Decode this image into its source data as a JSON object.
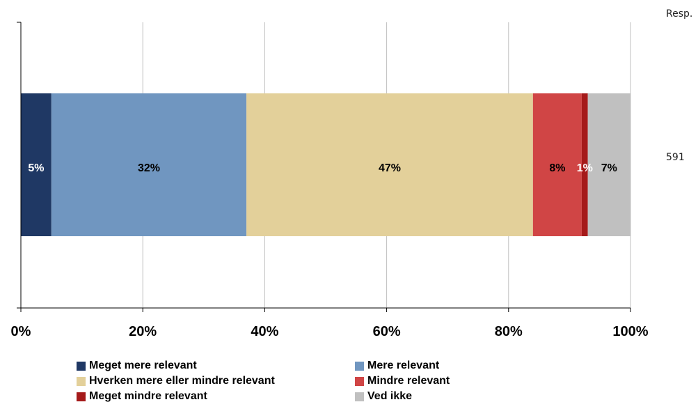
{
  "respondents": {
    "header": "Resp.",
    "count": "591"
  },
  "chart_data": {
    "type": "bar",
    "orientation": "horizontal",
    "stacked": true,
    "normalized": true,
    "xlim": [
      0,
      100
    ],
    "x_ticks": [
      "0%",
      "20%",
      "40%",
      "60%",
      "80%",
      "100%"
    ],
    "grid": true,
    "legend_position": "bottom",
    "series": [
      {
        "name": "Meget mere relevant",
        "value": 5,
        "label": "5%",
        "color": "#1f3864",
        "label_color": "#ffffff"
      },
      {
        "name": "Mere relevant",
        "value": 32,
        "label": "32%",
        "color": "#7096c0",
        "label_color": "#000000"
      },
      {
        "name": "Hverken mere eller mindre relevant",
        "value": 47,
        "label": "47%",
        "color": "#e3d09a",
        "label_color": "#000000"
      },
      {
        "name": "Mindre relevant",
        "value": 8,
        "label": "8%",
        "color": "#d04545",
        "label_color": "#000000"
      },
      {
        "name": "Meget mindre relevant",
        "value": 1,
        "label": "1%",
        "color": "#a51a1a",
        "label_color": "#ffffff"
      },
      {
        "name": "Ved ikke",
        "value": 7,
        "label": "7%",
        "color": "#c0c0c0",
        "label_color": "#000000"
      }
    ]
  }
}
